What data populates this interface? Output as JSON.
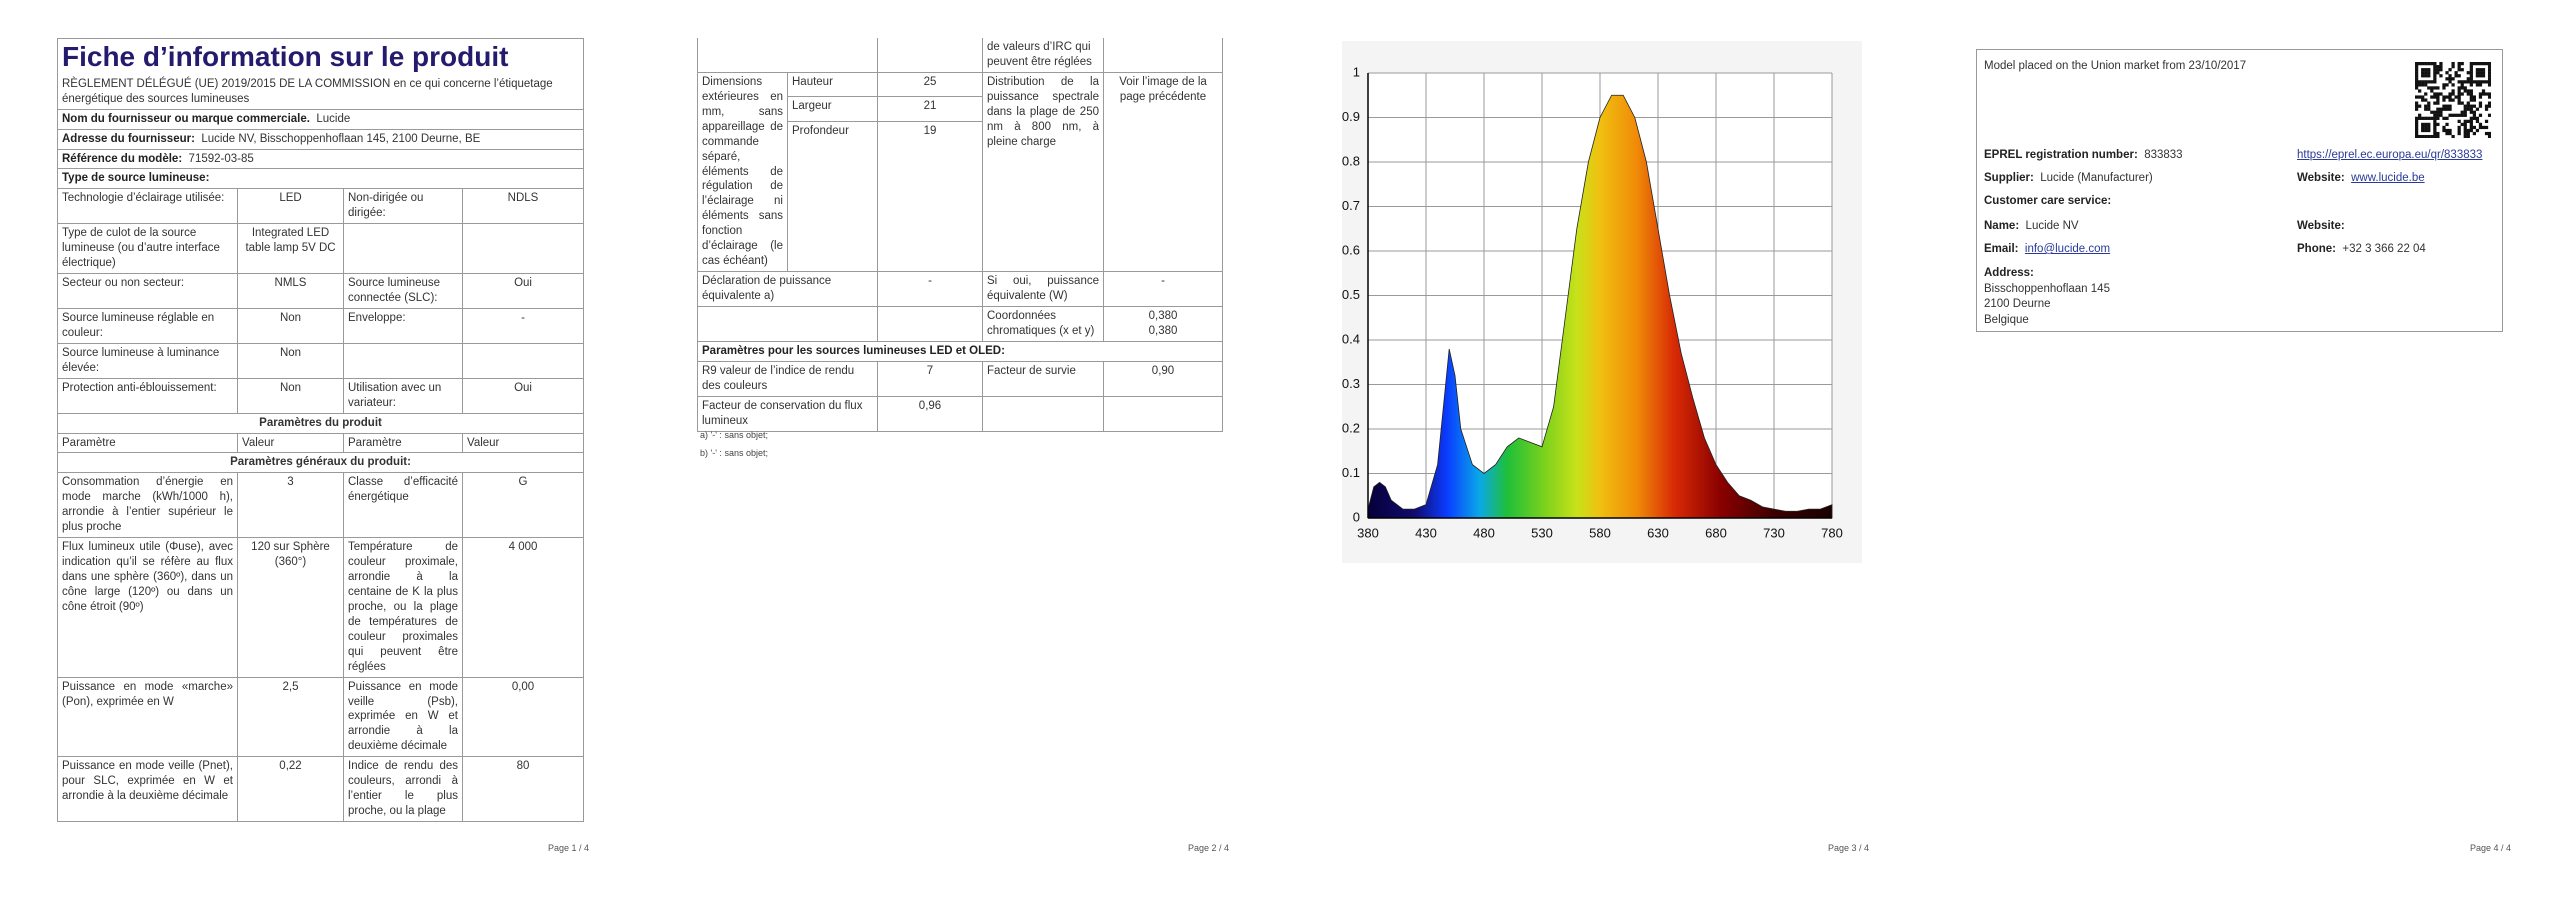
{
  "page1": {
    "title": "Fiche d’information sur le produit",
    "regulation": "RÈGLEMENT DÉLÉGUÉ (UE) 2019/2015 DE LA COMMISSION en ce qui concerne l’étiquetage énergétique des sources lumineuses",
    "supplier": {
      "label": "Nom du fournisseur ou marque commerciale.",
      "value": "Lucide"
    },
    "address": {
      "label": "Adresse du fournisseur:",
      "value": "Lucide NV, Bisschoppenhoflaan 145, 2100 Deurne, BE"
    },
    "model": {
      "label": "Référence du modèle:",
      "value": "71592-03-85"
    },
    "light_source_type": "Type de source lumineuse:",
    "source_rows": [
      [
        "Technologie d’éclairage utilisée:",
        "LED",
        "Non-dirigée ou dirigée:",
        "NDLS"
      ],
      [
        "Type de culot de la source lumineuse (ou d’autre interface électrique)",
        "Integrated LED table lamp 5V DC"
      ],
      [
        "Secteur ou non secteur:",
        "NMLS",
        "Source lumineuse connectée (SLC):",
        "Oui"
      ],
      [
        "Source lumineuse réglable en couleur:",
        "Non",
        "Enveloppe:",
        "-"
      ],
      [
        "Source lumineuse à luminance élevée:",
        "Non"
      ],
      [
        "Protection anti-éblouissement:",
        "Non",
        "Utilisation avec un variateur:",
        "Oui"
      ]
    ],
    "product_params_heading": "Paramètres du produit",
    "header": [
      "Paramètre",
      "Valeur",
      "Paramètre",
      "Valeur"
    ],
    "general_params_heading": "Paramètres généraux du produit:",
    "param_rows": [
      [
        "Consommation d’énergie en mode marche (kWh/1000 h), arrondie à l’entier supérieur le plus proche",
        "3",
        "Classe d’efficacité énergétique",
        "G"
      ],
      [
        "Flux lumineux utile (Φuse), avec indication qu’il se réfère au flux dans une sphère (360º), dans un cône large (120º) ou dans un cône étroit (90º)",
        "120 sur Sphère (360°)",
        "Température de couleur proximale, arrondie à la centaine de K la plus proche, ou la plage de températures de couleur proximales qui peuvent être réglées",
        "4 000"
      ],
      [
        "Puissance en mode «marche» (Pon), exprimée en W",
        "2,5",
        "Puissance en mode veille (Psb), exprimée en W et arrondie à la deuxième décimale",
        "0,00"
      ],
      [
        "Puissance en mode veille (Pnet), pour SLC, exprimée en W et arrondie à la deuxième décimale",
        "0,22",
        "Indice de rendu des couleurs, arrondi à l’entier le plus proche, ou la plage",
        "80"
      ]
    ],
    "page_number": "Page 1 / 4"
  },
  "page2": {
    "continuation": "de valeurs d’IRC qui peuvent être réglées",
    "dimensions": {
      "label": "Dimensions extérieures en mm, sans appareillage de commande séparé, éléments de régulation de l’éclairage ni éléments sans fonction d’éclairage (le cas échéant)",
      "items": [
        {
          "label": "Hauteur",
          "value": "25"
        },
        {
          "label": "Largeur",
          "value": "21"
        },
        {
          "label": "Profondeur",
          "value": "19"
        }
      ]
    },
    "spectral": {
      "label": "Distribution de la puissance spectrale dans la plage de 250 nm à 800 nm, à pleine charge",
      "value": "Voir l’image de la page précédente"
    },
    "equivalent": [
      "Déclaration de puissance équivalente a)",
      "-",
      "Si oui, puissance équivalente (W)",
      "-"
    ],
    "chromaticity": {
      "label": "Coordonnées chromatiques (x et y)",
      "values": [
        "0,380",
        "0,380"
      ]
    },
    "led_heading": "Paramètres pour les sources lumineuses LED et OLED:",
    "led_rows": [
      [
        "R9 valeur de l’indice de rendu des couleurs",
        "7",
        "Facteur de survie",
        "0,90"
      ],
      [
        "Facteur de conservation du flux lumineux",
        "0,96"
      ]
    ],
    "footnotes": [
      "a) '-' : sans objet;",
      "b) '-' : sans objet;"
    ],
    "page_number": "Page 2 / 4"
  },
  "chart_data": {
    "type": "area",
    "x": [
      380,
      385,
      390,
      395,
      400,
      410,
      420,
      430,
      440,
      445,
      450,
      455,
      460,
      470,
      480,
      490,
      500,
      510,
      520,
      530,
      540,
      550,
      560,
      570,
      580,
      590,
      600,
      610,
      620,
      630,
      640,
      650,
      660,
      670,
      680,
      690,
      700,
      710,
      720,
      730,
      740,
      750,
      760,
      770,
      780
    ],
    "values": [
      0.02,
      0.07,
      0.08,
      0.07,
      0.04,
      0.02,
      0.02,
      0.03,
      0.12,
      0.25,
      0.38,
      0.32,
      0.2,
      0.12,
      0.1,
      0.12,
      0.16,
      0.18,
      0.17,
      0.16,
      0.25,
      0.45,
      0.65,
      0.8,
      0.9,
      0.95,
      0.95,
      0.9,
      0.8,
      0.65,
      0.5,
      0.37,
      0.27,
      0.18,
      0.12,
      0.08,
      0.05,
      0.04,
      0.025,
      0.02,
      0.015,
      0.015,
      0.02,
      0.02,
      0.03
    ],
    "xlim": [
      380,
      780
    ],
    "xticks": [
      380,
      430,
      480,
      530,
      580,
      630,
      680,
      730,
      780
    ],
    "ylim": [
      0,
      1
    ],
    "yticks": [
      0,
      0.1,
      0.2,
      0.3,
      0.4,
      0.5,
      0.6,
      0.7,
      0.8,
      0.9,
      1
    ],
    "grid": true
  },
  "page3": {
    "page_number": "Page 3 / 4"
  },
  "page4": {
    "market": "Model placed on the Union market from 23/10/2017",
    "eprel": {
      "label": "EPREL registration number:",
      "value": "833833",
      "link": "https://eprel.ec.europa.eu/qr/833833"
    },
    "supplier": {
      "label": "Supplier:",
      "value": "Lucide (Manufacturer)"
    },
    "website": {
      "label": "Website:",
      "value": "www.lucide.be"
    },
    "customer_care": "Customer care service:",
    "name": {
      "label": "Name:",
      "value": "Lucide NV"
    },
    "care_website": {
      "label": "Website:"
    },
    "email": {
      "label": "Email:",
      "value": "info@lucide.com"
    },
    "phone": {
      "label": "Phone:",
      "value": "+32 3 366 22 04"
    },
    "address": {
      "label": "Address:",
      "lines": [
        "Bisschoppenhoflaan 145",
        "2100 Deurne",
        "Belgique"
      ]
    },
    "page_number": "Page 4 / 4"
  }
}
